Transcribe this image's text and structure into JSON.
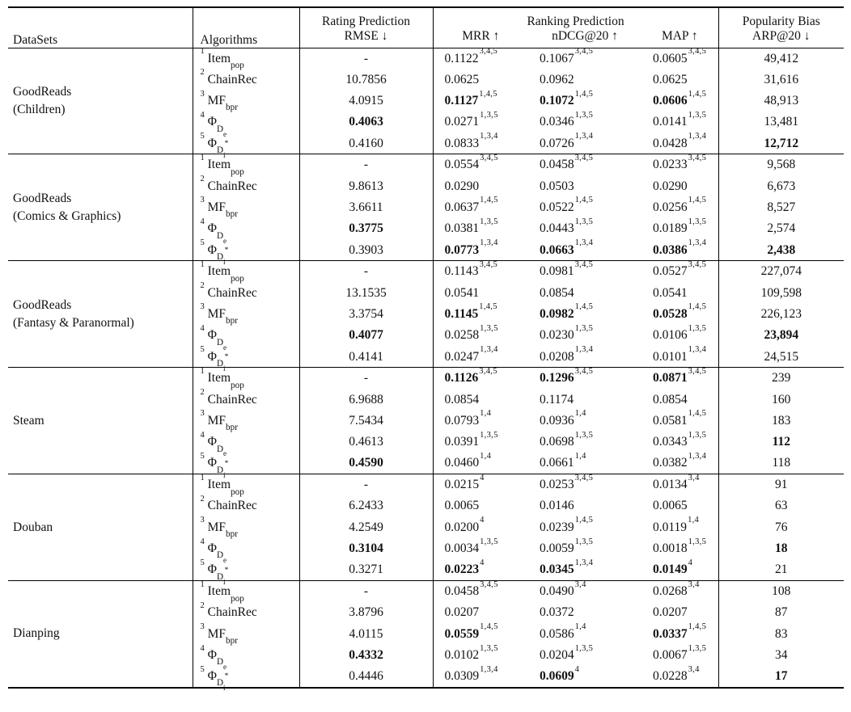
{
  "header": {
    "datasets": "DataSets",
    "algorithms": "Algorithms",
    "rating_group": "Rating Prediction",
    "rmse": "RMSE ↓",
    "ranking_group": "Ranking Prediction",
    "mrr": "MRR ↑",
    "ndcg": "nDCG@20 ↑",
    "map": "MAP ↑",
    "popularity_group": "Popularity Bias",
    "arp": "ARP@20 ↓"
  },
  "chart_data": {
    "type": "table",
    "title": "Recommendation performance comparison across datasets",
    "columns": [
      "DataSets",
      "Algorithms",
      "RMSE",
      "MRR",
      "nDCG@20",
      "MAP",
      "ARP@20"
    ]
  },
  "groups": [
    {
      "dataset_lines": [
        "GoodReads",
        "(Children)"
      ],
      "rows": [
        {
          "alg": {
            "n": "1",
            "main": "Item",
            "sub": "pop"
          },
          "rmse": {
            "t": "-"
          },
          "mrr": {
            "t": "0.1122",
            "s": "3,4,5"
          },
          "ndcg": {
            "t": "0.1067",
            "s": "3,4,5"
          },
          "map": {
            "t": "0.0605",
            "s": "3,4,5"
          },
          "arp": {
            "t": "49,412"
          }
        },
        {
          "alg": {
            "n": "2",
            "main": "ChainRec",
            "sub": ""
          },
          "rmse": {
            "t": "10.7856"
          },
          "mrr": {
            "t": "0.0625"
          },
          "ndcg": {
            "t": "0.0962"
          },
          "map": {
            "t": "0.0625"
          },
          "arp": {
            "t": "31,616"
          }
        },
        {
          "alg": {
            "n": "3",
            "main": "MF",
            "sub": "bpr"
          },
          "rmse": {
            "t": "4.0915"
          },
          "mrr": {
            "t": "0.1127",
            "s": "1,4,5",
            "b": true
          },
          "ndcg": {
            "t": "0.1072",
            "s": "1,4,5",
            "b": true
          },
          "map": {
            "t": "0.0606",
            "s": "1,4,5",
            "b": true
          },
          "arp": {
            "t": "48,913"
          }
        },
        {
          "alg": {
            "n": "4",
            "main": "Φ",
            "sub": "D",
            "sub2": "e"
          },
          "rmse": {
            "t": "0.4063",
            "b": true
          },
          "mrr": {
            "t": "0.0271",
            "s": "1,3,5"
          },
          "ndcg": {
            "t": "0.0346",
            "s": "1,3,5"
          },
          "map": {
            "t": "0.0141",
            "s": "1,3,5"
          },
          "arp": {
            "t": "13,481"
          }
        },
        {
          "alg": {
            "n": "5",
            "main": "Φ",
            "sub": "D",
            "sub2": "i",
            "sup": "*"
          },
          "rmse": {
            "t": "0.4160"
          },
          "mrr": {
            "t": "0.0833",
            "s": "1,3,4"
          },
          "ndcg": {
            "t": "0.0726",
            "s": "1,3,4"
          },
          "map": {
            "t": "0.0428",
            "s": "1,3,4"
          },
          "arp": {
            "t": "12,712",
            "b": true
          }
        }
      ]
    },
    {
      "dataset_lines": [
        "GoodReads",
        "(Comics & Graphics)"
      ],
      "rows": [
        {
          "alg": {
            "n": "1",
            "main": "Item",
            "sub": "pop"
          },
          "rmse": {
            "t": "-"
          },
          "mrr": {
            "t": "0.0554",
            "s": "3,4,5"
          },
          "ndcg": {
            "t": "0.0458",
            "s": "3,4,5"
          },
          "map": {
            "t": "0.0233",
            "s": "3,4,5"
          },
          "arp": {
            "t": "9,568"
          }
        },
        {
          "alg": {
            "n": "2",
            "main": "ChainRec",
            "sub": ""
          },
          "rmse": {
            "t": "9.8613"
          },
          "mrr": {
            "t": "0.0290"
          },
          "ndcg": {
            "t": "0.0503"
          },
          "map": {
            "t": "0.0290"
          },
          "arp": {
            "t": "6,673"
          }
        },
        {
          "alg": {
            "n": "3",
            "main": "MF",
            "sub": "bpr"
          },
          "rmse": {
            "t": "3.6611"
          },
          "mrr": {
            "t": "0.0637",
            "s": "1,4,5"
          },
          "ndcg": {
            "t": "0.0522",
            "s": "1,4,5"
          },
          "map": {
            "t": "0.0256",
            "s": "1,4,5"
          },
          "arp": {
            "t": "8,527"
          }
        },
        {
          "alg": {
            "n": "4",
            "main": "Φ",
            "sub": "D",
            "sub2": "e"
          },
          "rmse": {
            "t": "0.3775",
            "b": true
          },
          "mrr": {
            "t": "0.0381",
            "s": "1,3,5"
          },
          "ndcg": {
            "t": "0.0443",
            "s": "1,3,5"
          },
          "map": {
            "t": "0.0189",
            "s": "1,3,5"
          },
          "arp": {
            "t": "2,574"
          }
        },
        {
          "alg": {
            "n": "5",
            "main": "Φ",
            "sub": "D",
            "sub2": "i",
            "sup": "*"
          },
          "rmse": {
            "t": "0.3903"
          },
          "mrr": {
            "t": "0.0773",
            "s": "1,3,4",
            "b": true
          },
          "ndcg": {
            "t": "0.0663",
            "s": "1,3,4",
            "b": true
          },
          "map": {
            "t": "0.0386",
            "s": "1,3,4",
            "b": true
          },
          "arp": {
            "t": "2,438",
            "b": true
          }
        }
      ]
    },
    {
      "dataset_lines": [
        "GoodReads",
        "(Fantasy & Paranormal)"
      ],
      "rows": [
        {
          "alg": {
            "n": "1",
            "main": "Item",
            "sub": "pop"
          },
          "rmse": {
            "t": "-"
          },
          "mrr": {
            "t": "0.1143",
            "s": "3,4,5"
          },
          "ndcg": {
            "t": "0.0981",
            "s": "3,4,5"
          },
          "map": {
            "t": "0.0527",
            "s": "3,4,5"
          },
          "arp": {
            "t": "227,074"
          }
        },
        {
          "alg": {
            "n": "2",
            "main": "ChainRec",
            "sub": ""
          },
          "rmse": {
            "t": "13.1535"
          },
          "mrr": {
            "t": "0.0541"
          },
          "ndcg": {
            "t": "0.0854"
          },
          "map": {
            "t": "0.0541"
          },
          "arp": {
            "t": "109,598"
          }
        },
        {
          "alg": {
            "n": "3",
            "main": "MF",
            "sub": "bpr"
          },
          "rmse": {
            "t": "3.3754"
          },
          "mrr": {
            "t": "0.1145",
            "s": "1,4,5",
            "b": true
          },
          "ndcg": {
            "t": "0.0982",
            "s": "1,4,5",
            "b": true
          },
          "map": {
            "t": "0.0528",
            "s": "1,4,5",
            "b": true
          },
          "arp": {
            "t": "226,123"
          }
        },
        {
          "alg": {
            "n": "4",
            "main": "Φ",
            "sub": "D",
            "sub2": "e"
          },
          "rmse": {
            "t": "0.4077",
            "b": true
          },
          "mrr": {
            "t": "0.0258",
            "s": "1,3,5"
          },
          "ndcg": {
            "t": "0.0230",
            "s": "1,3,5"
          },
          "map": {
            "t": "0.0106",
            "s": "1,3,5"
          },
          "arp": {
            "t": "23,894",
            "b": true
          }
        },
        {
          "alg": {
            "n": "5",
            "main": "Φ",
            "sub": "D",
            "sub2": "i",
            "sup": "*"
          },
          "rmse": {
            "t": "0.4141"
          },
          "mrr": {
            "t": "0.0247",
            "s": "1,3,4"
          },
          "ndcg": {
            "t": "0.0208",
            "s": "1,3,4"
          },
          "map": {
            "t": "0.0101",
            "s": "1,3,4"
          },
          "arp": {
            "t": "24,515"
          }
        }
      ]
    },
    {
      "dataset_lines": [
        "Steam"
      ],
      "rows": [
        {
          "alg": {
            "n": "1",
            "main": "Item",
            "sub": "pop"
          },
          "rmse": {
            "t": "-"
          },
          "mrr": {
            "t": "0.1126",
            "s": "3,4,5",
            "b": true
          },
          "ndcg": {
            "t": "0.1296",
            "s": "3,4,5",
            "b": true
          },
          "map": {
            "t": "0.0871",
            "s": "3,4,5",
            "b": true
          },
          "arp": {
            "t": "239"
          }
        },
        {
          "alg": {
            "n": "2",
            "main": "ChainRec",
            "sub": ""
          },
          "rmse": {
            "t": "6.9688"
          },
          "mrr": {
            "t": "0.0854"
          },
          "ndcg": {
            "t": "0.1174"
          },
          "map": {
            "t": "0.0854"
          },
          "arp": {
            "t": "160"
          }
        },
        {
          "alg": {
            "n": "3",
            "main": "MF",
            "sub": "bpr"
          },
          "rmse": {
            "t": "7.5434"
          },
          "mrr": {
            "t": "0.0793",
            "s": "1,4"
          },
          "ndcg": {
            "t": "0.0936",
            "s": "1,4"
          },
          "map": {
            "t": "0.0581",
            "s": "1,4,5"
          },
          "arp": {
            "t": "183"
          }
        },
        {
          "alg": {
            "n": "4",
            "main": "Φ",
            "sub": "D",
            "sub2": "e"
          },
          "rmse": {
            "t": "0.4613"
          },
          "mrr": {
            "t": "0.0391",
            "s": "1,3,5"
          },
          "ndcg": {
            "t": "0.0698",
            "s": "1,3,5"
          },
          "map": {
            "t": "0.0343",
            "s": "1,3,5"
          },
          "arp": {
            "t": "112",
            "b": true
          }
        },
        {
          "alg": {
            "n": "5",
            "main": "Φ",
            "sub": "D",
            "sub2": "i",
            "sup": "*"
          },
          "rmse": {
            "t": "0.4590",
            "b": true
          },
          "mrr": {
            "t": "0.0460",
            "s": "1,4"
          },
          "ndcg": {
            "t": "0.0661",
            "s": "1,4"
          },
          "map": {
            "t": "0.0382",
            "s": "1,3,4"
          },
          "arp": {
            "t": "118"
          }
        }
      ]
    },
    {
      "dataset_lines": [
        "Douban"
      ],
      "rows": [
        {
          "alg": {
            "n": "1",
            "main": "Item",
            "sub": "pop"
          },
          "rmse": {
            "t": "-"
          },
          "mrr": {
            "t": "0.0215",
            "s": "4"
          },
          "ndcg": {
            "t": "0.0253",
            "s": "3,4,5"
          },
          "map": {
            "t": "0.0134",
            "s": "3,4"
          },
          "arp": {
            "t": "91"
          }
        },
        {
          "alg": {
            "n": "2",
            "main": "ChainRec",
            "sub": ""
          },
          "rmse": {
            "t": "6.2433"
          },
          "mrr": {
            "t": "0.0065"
          },
          "ndcg": {
            "t": "0.0146"
          },
          "map": {
            "t": "0.0065"
          },
          "arp": {
            "t": "63"
          }
        },
        {
          "alg": {
            "n": "3",
            "main": "MF",
            "sub": "bpr"
          },
          "rmse": {
            "t": "4.2549"
          },
          "mrr": {
            "t": "0.0200",
            "s": "4"
          },
          "ndcg": {
            "t": "0.0239",
            "s": "1,4,5"
          },
          "map": {
            "t": "0.0119",
            "s": "1,4"
          },
          "arp": {
            "t": "76"
          }
        },
        {
          "alg": {
            "n": "4",
            "main": "Φ",
            "sub": "D",
            "sub2": "e"
          },
          "rmse": {
            "t": "0.3104",
            "b": true
          },
          "mrr": {
            "t": "0.0034",
            "s": "1,3,5"
          },
          "ndcg": {
            "t": "0.0059",
            "s": "1,3,5"
          },
          "map": {
            "t": "0.0018",
            "s": "1,3,5"
          },
          "arp": {
            "t": "18",
            "b": true
          }
        },
        {
          "alg": {
            "n": "5",
            "main": "Φ",
            "sub": "D",
            "sub2": "i",
            "sup": "*"
          },
          "rmse": {
            "t": "0.3271"
          },
          "mrr": {
            "t": "0.0223",
            "s": "4",
            "b": true
          },
          "ndcg": {
            "t": "0.0345",
            "s": "1,3,4",
            "b": true
          },
          "map": {
            "t": "0.0149",
            "s": "4",
            "b": true
          },
          "arp": {
            "t": "21"
          }
        }
      ]
    },
    {
      "dataset_lines": [
        "Dianping"
      ],
      "rows": [
        {
          "alg": {
            "n": "1",
            "main": "Item",
            "sub": "pop"
          },
          "rmse": {
            "t": "-"
          },
          "mrr": {
            "t": "0.0458",
            "s": "3,4,5"
          },
          "ndcg": {
            "t": "0.0490",
            "s": "3,4"
          },
          "map": {
            "t": "0.0268",
            "s": "3,4"
          },
          "arp": {
            "t": "108"
          }
        },
        {
          "alg": {
            "n": "2",
            "main": "ChainRec",
            "sub": ""
          },
          "rmse": {
            "t": "3.8796"
          },
          "mrr": {
            "t": "0.0207"
          },
          "ndcg": {
            "t": "0.0372"
          },
          "map": {
            "t": "0.0207"
          },
          "arp": {
            "t": "87"
          }
        },
        {
          "alg": {
            "n": "3",
            "main": "MF",
            "sub": "bpr"
          },
          "rmse": {
            "t": "4.0115"
          },
          "mrr": {
            "t": "0.0559",
            "s": "1,4,5",
            "b": true
          },
          "ndcg": {
            "t": "0.0586",
            "s": "1,4"
          },
          "map": {
            "t": "0.0337",
            "s": "1,4,5",
            "b": true
          },
          "arp": {
            "t": "83"
          }
        },
        {
          "alg": {
            "n": "4",
            "main": "Φ",
            "sub": "D",
            "sub2": "e"
          },
          "rmse": {
            "t": "0.4332",
            "b": true
          },
          "mrr": {
            "t": "0.0102",
            "s": "1,3,5"
          },
          "ndcg": {
            "t": "0.0204",
            "s": "1,3,5"
          },
          "map": {
            "t": "0.0067",
            "s": "1,3,5"
          },
          "arp": {
            "t": "34"
          }
        },
        {
          "alg": {
            "n": "5",
            "main": "Φ",
            "sub": "D",
            "sub2": "i",
            "sup": "*"
          },
          "rmse": {
            "t": "0.4446"
          },
          "mrr": {
            "t": "0.0309",
            "s": "1,3,4"
          },
          "ndcg": {
            "t": "0.0609",
            "s": "4",
            "b": true
          },
          "map": {
            "t": "0.0228",
            "s": "3,4"
          },
          "arp": {
            "t": "17",
            "b": true
          }
        }
      ]
    }
  ]
}
